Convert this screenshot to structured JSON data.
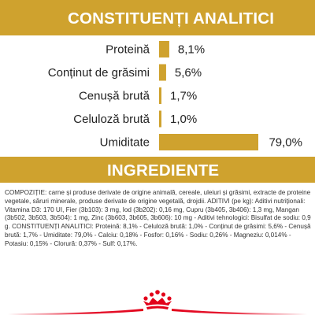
{
  "analytics": {
    "title": "CONSTITUENȚI ANALITICI"
  },
  "ingredients": {
    "title": "INGREDIENTE",
    "text": "COMPOZIȚIE: carne și produse derivate de origine animală, cereale, uleiuri și grăsimi, extracte de proteine vegetale, săruri minerale, produse derivate de origine vegetală, drojdii. ADITIVI (pe kg): Aditivi nutriționali: Vitamina D3: 170 UI, Fier (3b103): 3 mg, Iod (3b202): 0,16 mg, Cupru (3b405, 3b406): 1,3 mg, Mangan (3b502, 3b503, 3b504): 1 mg, Zinc (3b603, 3b605, 3b606): 10 mg - Aditivi tehnologici: Bisulfat de sodiu: 0,9 g. CONSTITUENȚI ANALITICI: Proteină: 8,1% - Celuloză brută: 1,0% - Conținut de grăsimi: 5,6% - Cenușă brută: 1,7% - Umiditate: 79,0% - Calciu: 0,18% - Fosfor: 0,16% - Sodiu: 0,26% - Magneziu: 0,014% - Potasiu: 0,15% - Clorură: 0,37% - Sulf: 0,17%."
  },
  "colors": {
    "accent": "#cfa22e",
    "logo_red": "#e2001a"
  },
  "brand": {
    "logo_icon": "crown-icon"
  },
  "chart_data": {
    "type": "bar",
    "orientation": "horizontal",
    "categories": [
      "Proteină",
      "Conținut de grăsimi",
      "Cenușă brută",
      "Celuloză brută",
      "Umiditate"
    ],
    "values": [
      8.1,
      5.6,
      1.7,
      1.0,
      79.0
    ],
    "value_labels": [
      "8,1%",
      "5,6%",
      "1,7%",
      "1,0%",
      "79,0%"
    ],
    "unit": "%",
    "title": "CONSTITUENȚI ANALITICI",
    "xlabel": "",
    "ylabel": "",
    "grid": false,
    "legend": "none"
  }
}
